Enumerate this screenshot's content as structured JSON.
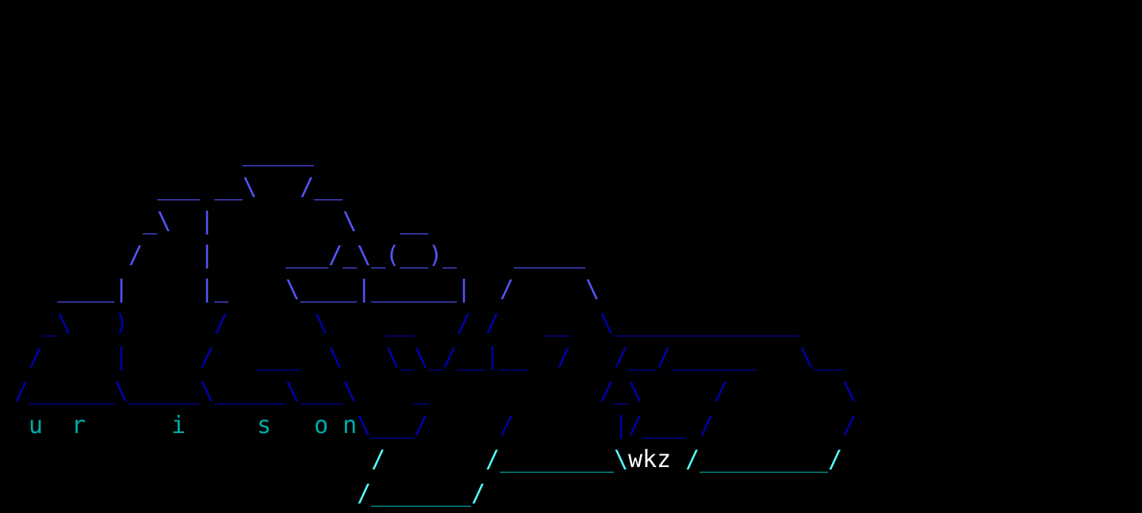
{
  "terminal": {
    "background": "#000000",
    "colors": {
      "light_blue": "#5555ff",
      "dark_blue": "#0000aa",
      "cyan": "#00aaaa",
      "bright_cyan": "#55ffff",
      "white": "#ffffff"
    },
    "signature": "wkz",
    "rows": [
      {
        "segments": []
      },
      {
        "segments": []
      },
      {
        "segments": []
      },
      {
        "segments": []
      },
      {
        "segments": [
          {
            "text": "                 _____",
            "color": "#5555ff"
          }
        ]
      },
      {
        "segments": [
          {
            "text": "           ___ __\\   /__",
            "color": "#5555ff"
          }
        ]
      },
      {
        "segments": [
          {
            "text": "          _\\  |         \\   __",
            "color": "#5555ff"
          }
        ]
      },
      {
        "segments": [
          {
            "text": "         /    |     ___/_\\_(__)_    _____",
            "color": "#5555ff"
          }
        ]
      },
      {
        "segments": [
          {
            "text": "    ____|     |_    \\____|______|  /     \\",
            "color": "#5555ff"
          }
        ]
      },
      {
        "segments": [
          {
            "text": "   _\\   )      /      \\    __   / /   __  \\_____________",
            "color": "#0000aa"
          }
        ]
      },
      {
        "segments": [
          {
            "text": "  /     |     /   ___  \\   \\_\\_/__|__  /   /__/______   \\__",
            "color": "#0000aa"
          }
        ]
      },
      {
        "segments": [
          {
            "text": " /______\\_____\\_____\\___\\    _            /_\\     /        \\",
            "color": "#0000aa"
          }
        ]
      },
      {
        "segments": [
          {
            "text": "  u  r      i     s   o n",
            "color": "#00aaaa"
          },
          {
            "text": "\\___/     /       |/___ /         /",
            "color": "#0000aa"
          }
        ]
      },
      {
        "segments": [
          {
            "text": "                          /       /",
            "color": "#55ffff"
          },
          {
            "text": "________",
            "color": "#00aaaa"
          },
          {
            "text": "\\",
            "color": "#55ffff"
          },
          {
            "text": "wkz",
            "color": "#ffffff"
          },
          {
            "text": " /",
            "color": "#55ffff"
          },
          {
            "text": "_________",
            "color": "#00aaaa"
          },
          {
            "text": "/",
            "color": "#55ffff"
          }
        ]
      },
      {
        "segments": [
          {
            "text": "                         /",
            "color": "#55ffff"
          },
          {
            "text": "_______",
            "color": "#00aaaa"
          },
          {
            "text": "/",
            "color": "#55ffff"
          }
        ]
      }
    ]
  }
}
